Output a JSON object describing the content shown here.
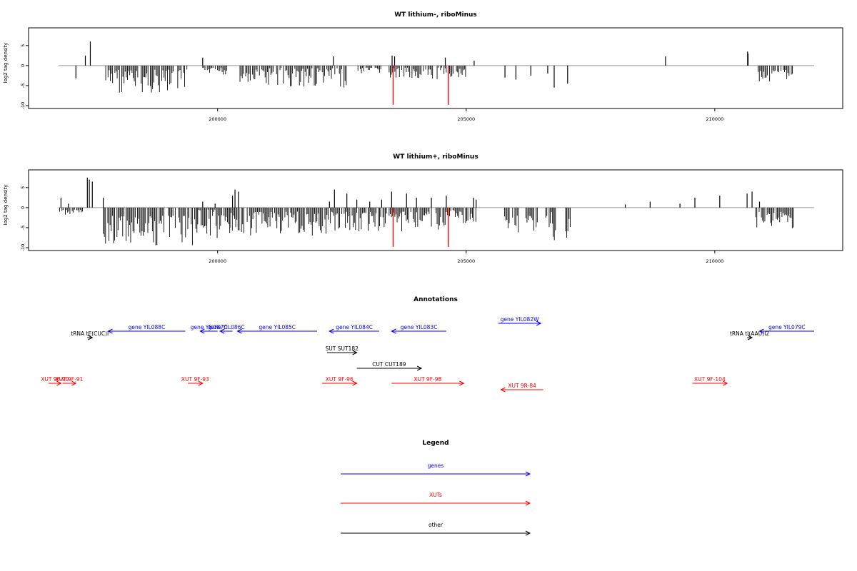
{
  "chart_data": [
    {
      "type": "bar",
      "title": "WT lithium-, riboMinus",
      "ylabel": "log2 tag density",
      "xlim": [
        196600,
        212200
      ],
      "ylim": [
        -10,
        8
      ],
      "yticks": [
        "-10",
        "-5",
        "0",
        "5"
      ],
      "xticks": [
        "200000",
        "205000",
        "210000"
      ],
      "grid": false,
      "special_bars": [
        {
          "x": 203530,
          "value": -9.8,
          "color": "#ff0000"
        },
        {
          "x": 204640,
          "value": -9.8,
          "color": "#ff0000"
        }
      ],
      "segments": [
        {
          "from": 197750,
          "to": 199400,
          "min": -7,
          "max": -1
        },
        {
          "from": 199700,
          "to": 200200,
          "min": -2.5,
          "max": -0.5
        },
        {
          "from": 200450,
          "to": 202600,
          "min": -5.5,
          "max": -0.5
        },
        {
          "from": 202800,
          "to": 203300,
          "min": -2,
          "max": -0.5
        },
        {
          "from": 203450,
          "to": 204600,
          "min": -4,
          "max": -0.5
        },
        {
          "from": 204620,
          "to": 205000,
          "min": -3,
          "max": -0.5
        },
        {
          "from": 210850,
          "to": 211600,
          "min": -4,
          "max": -1
        }
      ],
      "values": [
        {
          "x": 197150,
          "value": -3.2
        },
        {
          "x": 197340,
          "value": 2.5
        },
        {
          "x": 197440,
          "value": 6
        },
        {
          "x": 199700,
          "value": 2
        },
        {
          "x": 202330,
          "value": 2.3
        },
        {
          "x": 203510,
          "value": 2.5
        },
        {
          "x": 203560,
          "value": 2.3
        },
        {
          "x": 204580,
          "value": 2
        },
        {
          "x": 205160,
          "value": 1.2
        },
        {
          "x": 205780,
          "value": -3
        },
        {
          "x": 206000,
          "value": -3.5
        },
        {
          "x": 206300,
          "value": -2.5
        },
        {
          "x": 206640,
          "value": -2
        },
        {
          "x": 206770,
          "value": -5.5
        },
        {
          "x": 207040,
          "value": -4.5
        },
        {
          "x": 209010,
          "value": 2.3
        },
        {
          "x": 210660,
          "value": 3.5
        },
        {
          "x": 210670,
          "value": 3
        }
      ],
      "line_color": "#000000"
    },
    {
      "type": "bar",
      "title": "WT lithium+, riboMinus",
      "ylabel": "log2 tag density",
      "xlim": [
        196600,
        212200
      ],
      "ylim": [
        -10,
        8
      ],
      "yticks": [
        "-10",
        "-5",
        "0",
        "5"
      ],
      "xticks": [
        "200000",
        "205000",
        "210000"
      ],
      "grid": false,
      "special_bars": [
        {
          "x": 203530,
          "value": -9.8,
          "color": "#ff0000"
        },
        {
          "x": 204640,
          "value": -9.8,
          "color": "#ff0000"
        }
      ],
      "segments": [
        {
          "from": 196800,
          "to": 197300,
          "min": -2,
          "max": -0.5
        },
        {
          "from": 197700,
          "to": 199600,
          "min": -9.5,
          "max": -2
        },
        {
          "from": 199600,
          "to": 200250,
          "min": -8,
          "max": -0.5
        },
        {
          "from": 200250,
          "to": 202200,
          "min": -7,
          "max": -1
        },
        {
          "from": 202200,
          "to": 203400,
          "min": -6,
          "max": -1
        },
        {
          "from": 203450,
          "to": 204600,
          "min": -6,
          "max": -1
        },
        {
          "from": 204620,
          "to": 205200,
          "min": -4,
          "max": -0.5
        },
        {
          "from": 205750,
          "to": 206050,
          "min": -6.5,
          "max": -2
        },
        {
          "from": 206200,
          "to": 206450,
          "min": -6,
          "max": -2
        },
        {
          "from": 206600,
          "to": 206750,
          "min": -5,
          "max": -1
        },
        {
          "from": 206750,
          "to": 206800,
          "min": -8.5,
          "max": -5
        },
        {
          "from": 207000,
          "to": 207100,
          "min": -7.5,
          "max": -2
        },
        {
          "from": 210800,
          "to": 211600,
          "min": -5.5,
          "max": -1
        }
      ],
      "values": [
        {
          "x": 196850,
          "value": 2.5
        },
        {
          "x": 197000,
          "value": 1
        },
        {
          "x": 197380,
          "value": 7.5
        },
        {
          "x": 197420,
          "value": 7
        },
        {
          "x": 197480,
          "value": 6.5
        },
        {
          "x": 197700,
          "value": 2.5
        },
        {
          "x": 199700,
          "value": 1.5
        },
        {
          "x": 199950,
          "value": 1
        },
        {
          "x": 200300,
          "value": 3
        },
        {
          "x": 200350,
          "value": 4.5
        },
        {
          "x": 200420,
          "value": 4
        },
        {
          "x": 202250,
          "value": 1.5
        },
        {
          "x": 202350,
          "value": 4.5
        },
        {
          "x": 202600,
          "value": 3.5
        },
        {
          "x": 202800,
          "value": 2
        },
        {
          "x": 203060,
          "value": 1.5
        },
        {
          "x": 203300,
          "value": 2
        },
        {
          "x": 203500,
          "value": 4
        },
        {
          "x": 203800,
          "value": 3.5
        },
        {
          "x": 204000,
          "value": 2.5
        },
        {
          "x": 204300,
          "value": 2.5
        },
        {
          "x": 204600,
          "value": 3
        },
        {
          "x": 205150,
          "value": 2.5
        },
        {
          "x": 205200,
          "value": 2
        },
        {
          "x": 208200,
          "value": 0.8
        },
        {
          "x": 208700,
          "value": 1.5
        },
        {
          "x": 209300,
          "value": 1
        },
        {
          "x": 209600,
          "value": 2.5
        },
        {
          "x": 210100,
          "value": 3
        },
        {
          "x": 210650,
          "value": 3.5
        },
        {
          "x": 210750,
          "value": 4
        },
        {
          "x": 210900,
          "value": 1.5
        }
      ],
      "line_color": "#000000"
    }
  ],
  "annotations": {
    "title": "Annotations",
    "features": [
      {
        "label": "tRNA tE(CUC)I",
        "color": "#000000",
        "start": 197380,
        "end": 197480,
        "dir": 1,
        "row": 1
      },
      {
        "label": "gene YIL088C",
        "color": "#0000ff",
        "start": 197800,
        "end": 199350,
        "dir": -1,
        "row": 0
      },
      {
        "label": "gene YIL087C",
        "color": "#0000ff",
        "start": 199650,
        "end": 200000,
        "dir": -1,
        "row": 0
      },
      {
        "label": "gene YIL086C",
        "color": "#0000ff",
        "start": 200050,
        "end": 200300,
        "dir": -1,
        "row": 0
      },
      {
        "label": "gene YIL085C",
        "color": "#0000ff",
        "start": 200400,
        "end": 202000,
        "dir": -1,
        "row": 0
      },
      {
        "label": "gene YIL084C",
        "color": "#0000ff",
        "start": 202250,
        "end": 203250,
        "dir": -1,
        "row": 0
      },
      {
        "label": "gene YIL083C",
        "color": "#0000ff",
        "start": 203500,
        "end": 204600,
        "dir": -1,
        "row": 0
      },
      {
        "label": "gene YIL082W",
        "color": "#0000ff",
        "start": 205650,
        "end": 206500,
        "dir": 1,
        "row": -1
      },
      {
        "label": "tRNA tI(AAU)I2",
        "color": "#000000",
        "start": 210650,
        "end": 210750,
        "dir": 1,
        "row": 1
      },
      {
        "label": "gene YIL079C",
        "color": "#0000ff",
        "start": 210900,
        "end": 212000,
        "dir": -1,
        "row": 0
      },
      {
        "label": "SUT SUT182",
        "color": "#000000",
        "start": 202200,
        "end": 202800,
        "dir": 1,
        "row": 2
      },
      {
        "label": "CUT CUT189",
        "color": "#000000",
        "start": 202800,
        "end": 204100,
        "dir": 1,
        "row": 3
      },
      {
        "label": "XUT 9F-90",
        "color": "#ff0000",
        "start": 196600,
        "end": 196850,
        "dir": 1,
        "row": 4
      },
      {
        "label": "XUT 9F-91",
        "color": "#ff0000",
        "start": 196880,
        "end": 197150,
        "dir": 1,
        "row": 4
      },
      {
        "label": "XUT 9F-93",
        "color": "#ff0000",
        "start": 199400,
        "end": 199700,
        "dir": 1,
        "row": 4
      },
      {
        "label": "XUT 9F-96",
        "color": "#ff0000",
        "start": 202100,
        "end": 202800,
        "dir": 1,
        "row": 4
      },
      {
        "label": "XUT 9F-98",
        "color": "#ff0000",
        "start": 203500,
        "end": 204950,
        "dir": 1,
        "row": 4
      },
      {
        "label": "XUT 9R-84",
        "color": "#ff0000",
        "start": 205700,
        "end": 206550,
        "dir": -1,
        "row": 5
      },
      {
        "label": "XUT 9F-104",
        "color": "#ff0000",
        "start": 209550,
        "end": 210250,
        "dir": 1,
        "row": 4
      }
    ]
  },
  "legend": {
    "title": "Legend",
    "items": [
      {
        "label": "genes",
        "color": "#0000ff"
      },
      {
        "label": "XUTs",
        "color": "#ff0000"
      },
      {
        "label": "other",
        "color": "#000000"
      }
    ]
  }
}
